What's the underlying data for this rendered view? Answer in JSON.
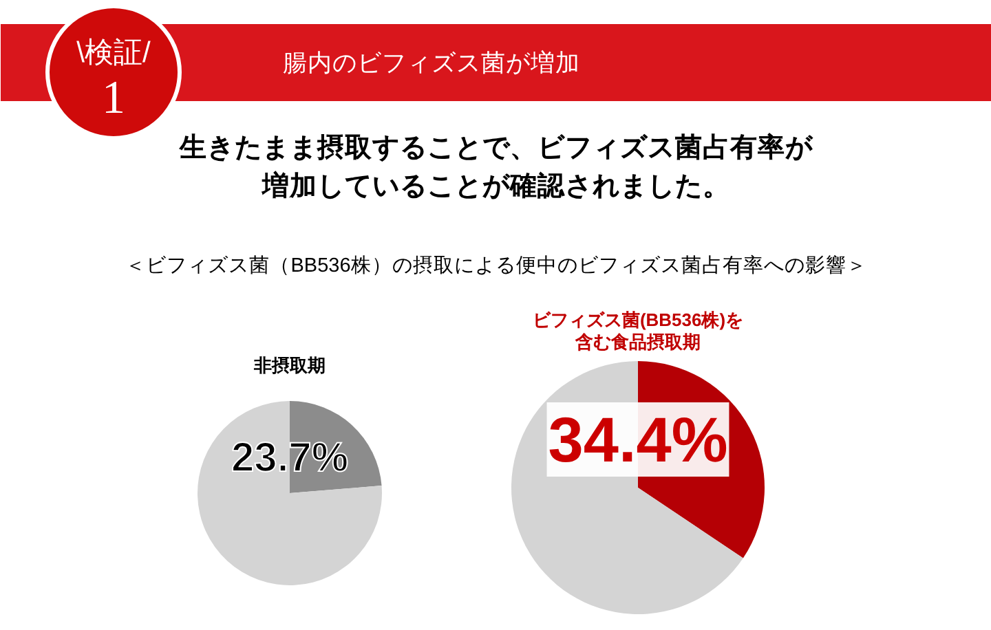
{
  "chart_data": [
    {
      "type": "other",
      "title": "腸内のビフィズス菌が増加",
      "subtitle": "生きたまま摂取することで、ビフィズス菌占有率が増加していることが確認されました。",
      "annotations": [
        "\\検証/",
        "1",
        "＜ビフィズス菌（BB536株）の摂取による便中のビフィズス菌占有率への影響＞"
      ]
    },
    {
      "type": "pie",
      "title": "非摂取期",
      "categories": [
        null,
        null
      ],
      "values": [
        23.7,
        76.3
      ],
      "colors": [
        "#8c8c8c",
        "#d4d4d4"
      ],
      "value_labels": [
        "23.7%",
        null
      ]
    },
    {
      "type": "pie",
      "title": "ビフィズス菌(BB536株)を含む食品摂取期",
      "categories": [
        null,
        null
      ],
      "values": [
        34.4,
        65.6
      ],
      "colors": [
        "#b50005",
        "#d4d4d4"
      ],
      "value_labels": [
        "34.4%",
        null
      ]
    }
  ]
}
